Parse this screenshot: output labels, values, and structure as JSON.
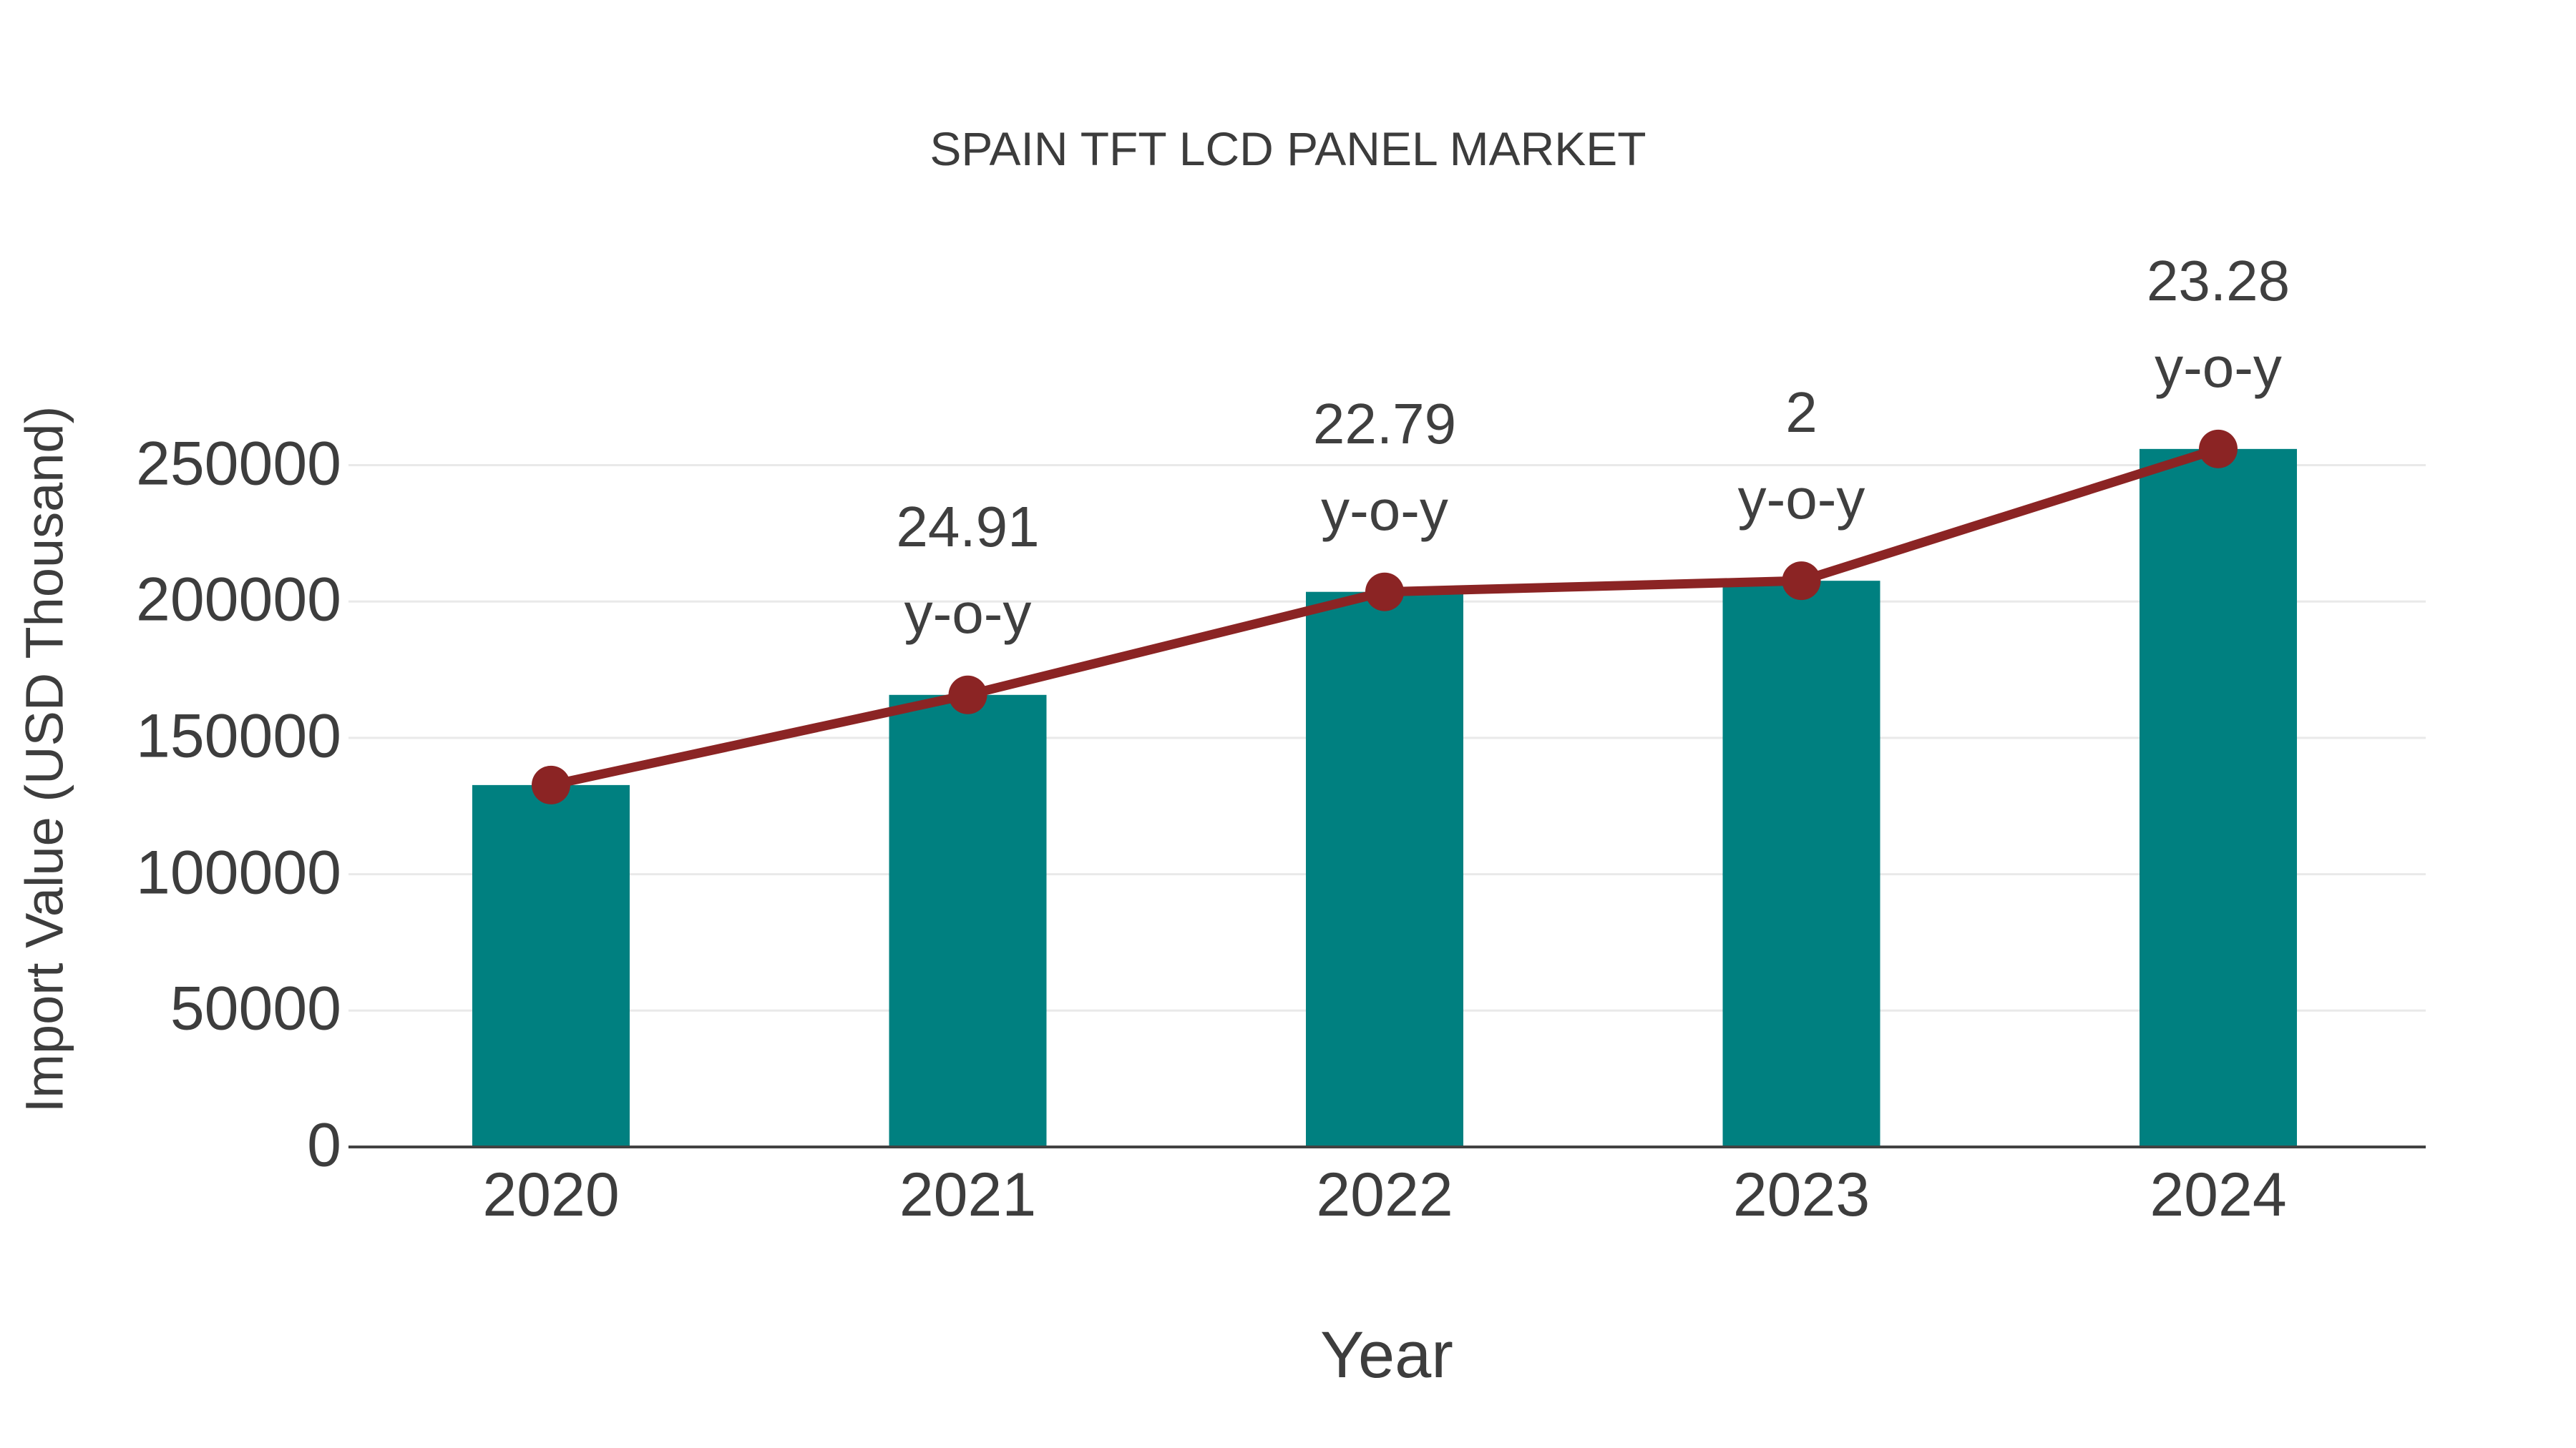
{
  "title": "SPAIN TFT LCD PANEL MARKET",
  "colors": {
    "bar": "#008080",
    "line": "#8b2424",
    "marker": "#8b2424",
    "gridline": "#e9e9e9",
    "axis_line": "#424242",
    "text": "#3d3d3d"
  },
  "chart_data": {
    "type": "bar",
    "title": "SPAIN TFT LCD PANEL MARKET",
    "xlabel": "Year",
    "ylabel": "Import Value (USD Thousand)",
    "categories": [
      "2020",
      "2021",
      "2022",
      "2023",
      "2024"
    ],
    "series": [
      {
        "name": "Import Value (USD Thousand)",
        "type": "bar",
        "color": "#008080",
        "values": [
          132700,
          165760,
          203540,
          207610,
          255940
        ]
      },
      {
        "name": "Import Value trend line",
        "type": "line",
        "color": "#8b2424",
        "values": [
          132700,
          165760,
          203540,
          207610,
          255940
        ]
      }
    ],
    "annotations": [
      {
        "category": "2021",
        "label": "24.91",
        "sublabel": "y-o-y"
      },
      {
        "category": "2022",
        "label": "22.79",
        "sublabel": "y-o-y"
      },
      {
        "category": "2023",
        "label": "2",
        "sublabel": "y-o-y"
      },
      {
        "category": "2024",
        "label": "23.28",
        "sublabel": "y-o-y"
      }
    ],
    "ylim": [
      0,
      262000
    ],
    "yticks": [
      0,
      50000,
      100000,
      150000,
      200000,
      250000
    ],
    "grid": "horizontal",
    "legend": "none"
  }
}
